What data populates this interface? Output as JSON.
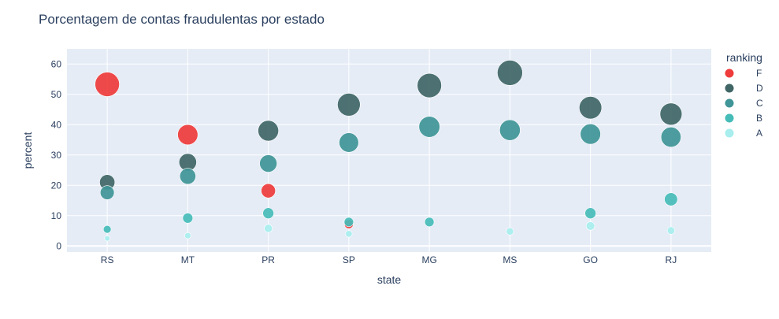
{
  "chart_data": {
    "type": "scatter",
    "title": "Porcentagem de contas fraudulentas por estado",
    "xlabel": "state",
    "ylabel": "percent",
    "categories": [
      "RS",
      "MT",
      "PR",
      "SP",
      "MG",
      "MS",
      "GO",
      "RJ"
    ],
    "ylim": [
      -2,
      65
    ],
    "yticks": [
      0,
      10,
      20,
      30,
      40,
      50,
      60
    ],
    "grid": true,
    "plot_background": "#e5ecf6",
    "marker_size_encodes": "percent",
    "legend": {
      "title": "ranking",
      "placement": "right"
    },
    "series": [
      {
        "name": "F",
        "color": "#ef3b3b",
        "values": [
          53.3,
          36.7,
          18.2,
          7.2,
          null,
          null,
          null,
          null
        ]
      },
      {
        "name": "D",
        "color": "#406666",
        "values": [
          21.0,
          27.6,
          38.0,
          46.6,
          52.9,
          57.1,
          45.6,
          43.5
        ]
      },
      {
        "name": "C",
        "color": "#3f9597",
        "values": [
          17.6,
          23.0,
          27.2,
          34.1,
          39.3,
          38.2,
          36.9,
          35.9
        ]
      },
      {
        "name": "B",
        "color": "#46bcb8",
        "values": [
          5.5,
          9.2,
          10.8,
          7.9,
          7.9,
          null,
          10.8,
          15.4
        ]
      },
      {
        "name": "A",
        "color": "#a8eeee",
        "values": [
          2.5,
          3.4,
          5.8,
          4.0,
          null,
          4.8,
          6.6,
          5.1
        ]
      }
    ]
  }
}
